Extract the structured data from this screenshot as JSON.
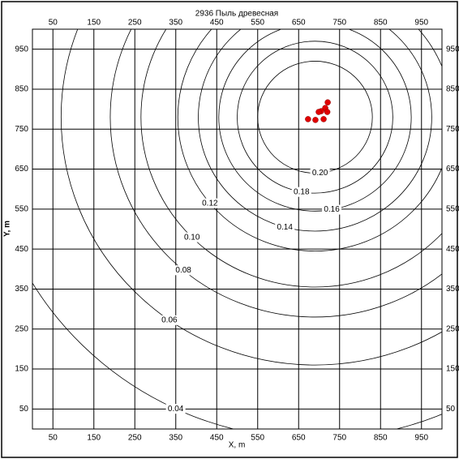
{
  "chart_data": {
    "type": "contour",
    "title": "2936 Пыль древесная",
    "x_label": "X, m",
    "y_label": "Y, m",
    "xlim": [
      0,
      1000
    ],
    "ylim": [
      0,
      1000
    ],
    "xticks": [
      50,
      150,
      250,
      350,
      450,
      550,
      650,
      750,
      850,
      950
    ],
    "yticks": [
      50,
      150,
      250,
      350,
      450,
      550,
      650,
      750,
      850,
      950
    ],
    "grid": true,
    "center": {
      "x": 690,
      "y": 780
    },
    "contours": [
      {
        "level": 0.04,
        "radius": 805
      },
      {
        "level": 0.06,
        "radius": 620
      },
      {
        "level": 0.08,
        "radius": 500
      },
      {
        "level": {
          "value": 0.1,
          "label": "0.10"
        },
        "radius": 425
      },
      {
        "level": 0.12,
        "radius": 335
      },
      {
        "level": 0.14,
        "radius": 285
      },
      {
        "level": 0.16,
        "radius": 235
      },
      {
        "level": 0.18,
        "radius": 190
      },
      {
        "level": {
          "value": 0.2,
          "label": "0.20"
        },
        "radius": 140
      }
    ],
    "sources": {
      "color": "#e00000",
      "x": [
        721,
        715,
        705,
        699,
        673,
        691,
        711,
        720
      ],
      "y": [
        817,
        803,
        795,
        793,
        775,
        773,
        775,
        793
      ]
    }
  }
}
